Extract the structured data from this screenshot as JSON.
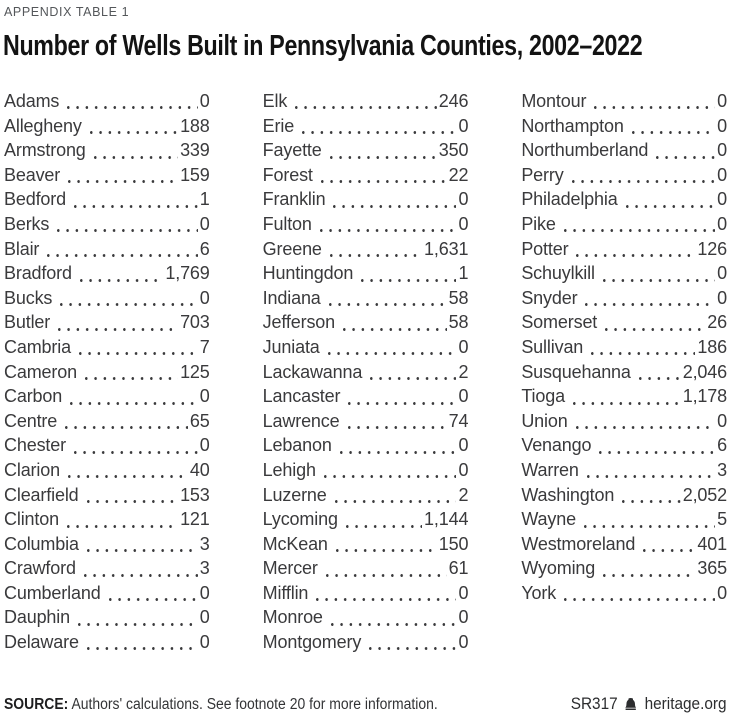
{
  "header": {
    "eyebrow": "APPENDIX TABLE 1",
    "title": "Number of Wells Built in Pennsylvania Counties, 2002–2022"
  },
  "chart_data": {
    "type": "table",
    "title": "Number of Wells Built in Pennsylvania Counties, 2002–2022",
    "layout": "three-column list with dot leaders, values right-aligned",
    "columns": [
      {
        "rows": [
          {
            "county": "Adams",
            "value": "0"
          },
          {
            "county": "Allegheny",
            "value": "188"
          },
          {
            "county": "Armstrong",
            "value": "339"
          },
          {
            "county": "Beaver",
            "value": "159"
          },
          {
            "county": "Bedford",
            "value": "1"
          },
          {
            "county": "Berks",
            "value": "0"
          },
          {
            "county": "Blair",
            "value": "6"
          },
          {
            "county": "Bradford",
            "value": "1,769"
          },
          {
            "county": "Bucks",
            "value": "0"
          },
          {
            "county": "Butler",
            "value": "703"
          },
          {
            "county": "Cambria",
            "value": "7"
          },
          {
            "county": "Cameron",
            "value": "125"
          },
          {
            "county": "Carbon",
            "value": "0"
          },
          {
            "county": "Centre",
            "value": "65"
          },
          {
            "county": "Chester",
            "value": "0"
          },
          {
            "county": "Clarion",
            "value": "40"
          },
          {
            "county": "Clearfield",
            "value": "153"
          },
          {
            "county": "Clinton",
            "value": "121"
          },
          {
            "county": "Columbia",
            "value": "3"
          },
          {
            "county": "Crawford",
            "value": "3"
          },
          {
            "county": "Cumberland",
            "value": "0"
          },
          {
            "county": "Dauphin",
            "value": "0"
          },
          {
            "county": "Delaware",
            "value": "0"
          }
        ]
      },
      {
        "rows": [
          {
            "county": "Elk",
            "value": "246"
          },
          {
            "county": "Erie",
            "value": "0"
          },
          {
            "county": "Fayette",
            "value": "350"
          },
          {
            "county": "Forest",
            "value": "22"
          },
          {
            "county": "Franklin",
            "value": "0"
          },
          {
            "county": "Fulton",
            "value": "0"
          },
          {
            "county": "Greene",
            "value": "1,631"
          },
          {
            "county": "Huntingdon",
            "value": "1"
          },
          {
            "county": "Indiana",
            "value": "58"
          },
          {
            "county": "Jefferson",
            "value": "58"
          },
          {
            "county": "Juniata",
            "value": "0"
          },
          {
            "county": "Lackawanna",
            "value": "2"
          },
          {
            "county": "Lancaster",
            "value": "0"
          },
          {
            "county": "Lawrence",
            "value": "74"
          },
          {
            "county": "Lebanon",
            "value": "0"
          },
          {
            "county": "Lehigh",
            "value": "0"
          },
          {
            "county": "Luzerne",
            "value": "2"
          },
          {
            "county": "Lycoming",
            "value": "1,144"
          },
          {
            "county": "McKean",
            "value": "150"
          },
          {
            "county": "Mercer",
            "value": "61"
          },
          {
            "county": "Mifflin",
            "value": "0"
          },
          {
            "county": "Monroe",
            "value": "0"
          },
          {
            "county": "Montgomery",
            "value": "0"
          }
        ]
      },
      {
        "rows": [
          {
            "county": "Montour",
            "value": "0"
          },
          {
            "county": "Northampton",
            "value": "0"
          },
          {
            "county": "Northumberland",
            "value": "0"
          },
          {
            "county": "Perry",
            "value": "0"
          },
          {
            "county": "Philadelphia",
            "value": "0"
          },
          {
            "county": "Pike",
            "value": "0"
          },
          {
            "county": "Potter",
            "value": "126"
          },
          {
            "county": "Schuylkill",
            "value": "0"
          },
          {
            "county": "Snyder",
            "value": "0"
          },
          {
            "county": "Somerset",
            "value": "26"
          },
          {
            "county": "Sullivan",
            "value": "186"
          },
          {
            "county": "Susquehanna",
            "value": "2,046"
          },
          {
            "county": "Tioga",
            "value": "1,178"
          },
          {
            "county": "Union",
            "value": "0"
          },
          {
            "county": "Venango",
            "value": "6"
          },
          {
            "county": "Warren",
            "value": "3"
          },
          {
            "county": "Washington",
            "value": "2,052"
          },
          {
            "county": "Wayne",
            "value": "5"
          },
          {
            "county": "Westmoreland",
            "value": "401"
          },
          {
            "county": "Wyoming",
            "value": "365"
          },
          {
            "county": "York",
            "value": "0"
          }
        ]
      }
    ]
  },
  "footer": {
    "source_label": "SOURCE:",
    "source_text": " Authors' calculations. See footnote 20 for more information.",
    "report_id": "SR317",
    "site": "heritage.org"
  },
  "icons": {
    "footer_logo": "liberty-bell"
  },
  "colors": {
    "ink": "#3a3a3c",
    "title_ink": "#131313",
    "eyebrow_ink": "#54575a",
    "background": "#ffffff"
  }
}
